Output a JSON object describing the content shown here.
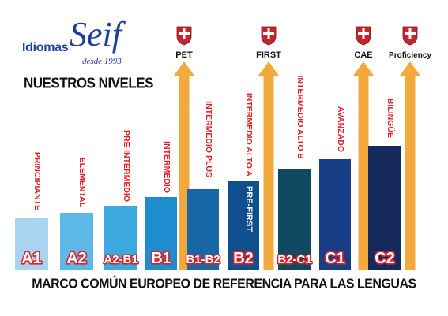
{
  "logo": {
    "brand_prefix": "Idiomas",
    "brand_name": "Seif",
    "since": "desde 1993"
  },
  "heading": "NUESTROS NIVELES",
  "footer": "MARCO COMÚN EUROPEO DE REFERENCIA PARA LAS LENGUAS",
  "colors": {
    "arrow": "#f3a93c",
    "label_red": "#e0202a",
    "code_text": "#ffffff",
    "crest_red": "#c4262e",
    "crest_white": "#ffffff"
  },
  "levels": [
    {
      "code": "A1",
      "name": "PRINCIPIANTE",
      "color": "#a8d4ef"
    },
    {
      "code": "A2",
      "name": "ELEMENTAL",
      "color": "#5cb8e6"
    },
    {
      "code": "A2-B1",
      "name": "PRE-INTERMEDIO",
      "color": "#3ca9df"
    },
    {
      "code": "B1",
      "name": "INTERMEDIO",
      "color": "#1d8dd0"
    },
    {
      "code": "B1-B2",
      "name": "INTERMEDIO PLUS",
      "color": "#1767a7"
    },
    {
      "code": "B2",
      "name": "INTERMEDIO ALTO A",
      "color": "#0f4f8e",
      "exam_inside": "PRE-FIRST"
    },
    {
      "code": "B2-C1",
      "name": "INTERMEDIO ALTO B",
      "color": "#0f4a61"
    },
    {
      "code": "C1",
      "name": "AVANZADO",
      "color": "#193d86"
    },
    {
      "code": "C2",
      "name": "BILINGÜE",
      "color": "#16295d"
    }
  ],
  "exams": [
    {
      "label": "PET",
      "after_level": "B1"
    },
    {
      "label": "FIRST",
      "after_level": "B2"
    },
    {
      "label": "CAE",
      "after_level": "C1"
    },
    {
      "label": "Proficiency",
      "after_level": "C2"
    }
  ]
}
